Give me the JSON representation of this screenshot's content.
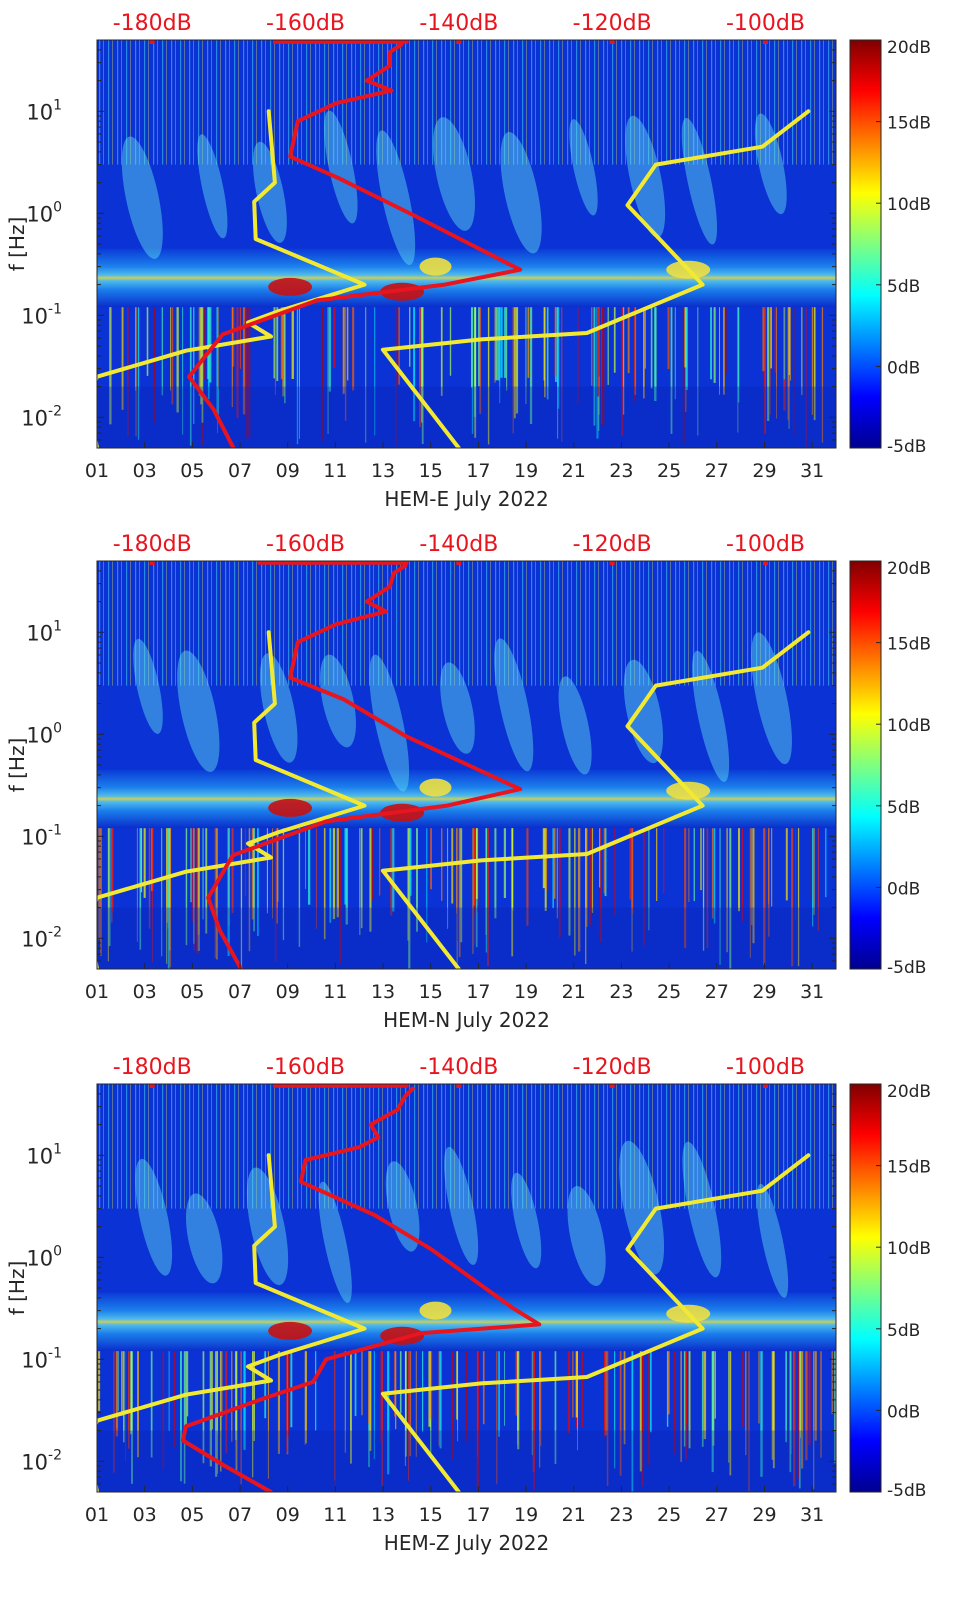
{
  "chart_data": [
    {
      "type": "heatmap",
      "xlabel": "HEM-E July 2022",
      "ylabel": "f [Hz]",
      "x_ticks": [
        "01",
        "03",
        "05",
        "07",
        "09",
        "11",
        "13",
        "15",
        "17",
        "19",
        "21",
        "23",
        "25",
        "27",
        "29",
        "31"
      ],
      "xlim": [
        1,
        32
      ],
      "y_scale": "log",
      "ylim": [
        0.005,
        50
      ],
      "y_ticks": [
        {
          "value": 10,
          "base": "10",
          "exp": "1"
        },
        {
          "value": 1,
          "base": "10",
          "exp": "0"
        },
        {
          "value": 0.1,
          "base": "10",
          "exp": "-1"
        },
        {
          "value": 0.01,
          "base": "10",
          "exp": "-2"
        }
      ],
      "top_axis": {
        "labels": [
          "-180dB",
          "-160dB",
          "-140dB",
          "-120dB",
          "-100dB"
        ],
        "values": [
          -180,
          -160,
          -140,
          -120,
          -100
        ],
        "range": [
          -187.2,
          -90.8
        ],
        "color": "#e8141e"
      },
      "colorbar": {
        "labels": [
          "20dB",
          "15dB",
          "10dB",
          "5dB",
          "0dB",
          "-5dB"
        ],
        "values": [
          20,
          15,
          10,
          5,
          0,
          -5
        ],
        "range": [
          -5,
          20
        ],
        "colormap": "jet"
      },
      "series": [
        {
          "color": "#f2ea32",
          "points": [
            [
              -187.2,
              0.005
            ],
            [
              -188.4,
              0.015
            ],
            [
              -187.2,
              0.025
            ],
            [
              -175.6,
              0.045
            ],
            [
              -164.5,
              0.062
            ],
            [
              -167.5,
              0.085
            ],
            [
              -163.5,
              0.11
            ],
            [
              -152.3,
              0.2
            ],
            [
              -166.5,
              0.56
            ],
            [
              -166.7,
              1.3
            ],
            [
              -164.0,
              2.0
            ],
            [
              -164.8,
              10
            ]
          ]
        },
        {
          "color": "#f2ea32",
          "points": [
            [
              -140.0,
              0.005
            ],
            [
              -149.9,
              0.046
            ],
            [
              -137.1,
              0.058
            ],
            [
              -123.3,
              0.067
            ],
            [
              -108.2,
              0.2
            ],
            [
              -118.0,
              1.2
            ],
            [
              -114.3,
              3.0
            ],
            [
              -100.4,
              4.5
            ],
            [
              -94.4,
              10
            ]
          ]
        },
        {
          "color": "#e8141e",
          "points": [
            [
              -169.4,
              0.005
            ],
            [
              -172.0,
              0.012
            ],
            [
              -175.2,
              0.025
            ],
            [
              -170.8,
              0.065
            ],
            [
              -158.5,
              0.14
            ],
            [
              -141.8,
              0.2
            ],
            [
              -132.0,
              0.28
            ],
            [
              -145.8,
              0.95
            ],
            [
              -155.6,
              2.2
            ],
            [
              -162.0,
              3.6
            ],
            [
              -161.0,
              8
            ],
            [
              -156.0,
              12
            ],
            [
              -148.8,
              16
            ],
            [
              -152.0,
              20
            ],
            [
              -149.0,
              28
            ],
            [
              -149.0,
              38
            ],
            [
              -147.5,
              45
            ]
          ]
        },
        {
          "color": "#e8141e",
          "points": [
            [
              -164.0,
              48
            ],
            [
              -146.8,
              48
            ]
          ]
        }
      ]
    },
    {
      "type": "heatmap",
      "xlabel": "HEM-N July 2022",
      "ylabel": "f [Hz]",
      "x_ticks": [
        "01",
        "03",
        "05",
        "07",
        "09",
        "11",
        "13",
        "15",
        "17",
        "19",
        "21",
        "23",
        "25",
        "27",
        "29",
        "31"
      ],
      "xlim": [
        1,
        32
      ],
      "y_scale": "log",
      "ylim": [
        0.005,
        50
      ],
      "y_ticks": [
        {
          "value": 10,
          "base": "10",
          "exp": "1"
        },
        {
          "value": 1,
          "base": "10",
          "exp": "0"
        },
        {
          "value": 0.1,
          "base": "10",
          "exp": "-1"
        },
        {
          "value": 0.01,
          "base": "10",
          "exp": "-2"
        }
      ],
      "top_axis": {
        "labels": [
          "-180dB",
          "-160dB",
          "-140dB",
          "-120dB",
          "-100dB"
        ],
        "values": [
          -180,
          -160,
          -140,
          -120,
          -100
        ],
        "range": [
          -187.2,
          -90.8
        ],
        "color": "#e8141e"
      },
      "colorbar": {
        "labels": [
          "20dB",
          "15dB",
          "10dB",
          "5dB",
          "0dB",
          "-5dB"
        ],
        "values": [
          20,
          15,
          10,
          5,
          0,
          -5
        ],
        "range": [
          -5,
          20
        ],
        "colormap": "jet"
      },
      "series": [
        {
          "color": "#f2ea32",
          "points": [
            [
              -187.2,
              0.005
            ],
            [
              -188.4,
              0.015
            ],
            [
              -187.2,
              0.025
            ],
            [
              -175.6,
              0.045
            ],
            [
              -164.5,
              0.062
            ],
            [
              -167.5,
              0.085
            ],
            [
              -163.5,
              0.11
            ],
            [
              -152.3,
              0.2
            ],
            [
              -166.5,
              0.56
            ],
            [
              -166.7,
              1.3
            ],
            [
              -164.0,
              2.0
            ],
            [
              -164.8,
              10
            ]
          ]
        },
        {
          "color": "#f2ea32",
          "points": [
            [
              -140.0,
              0.005
            ],
            [
              -149.9,
              0.046
            ],
            [
              -137.1,
              0.058
            ],
            [
              -123.3,
              0.067
            ],
            [
              -108.2,
              0.2
            ],
            [
              -118.0,
              1.2
            ],
            [
              -114.3,
              3.0
            ],
            [
              -100.4,
              4.5
            ],
            [
              -94.4,
              10
            ]
          ]
        },
        {
          "color": "#e8141e",
          "points": [
            [
              -168.4,
              0.005
            ],
            [
              -171.2,
              0.012
            ],
            [
              -172.7,
              0.025
            ],
            [
              -169.5,
              0.065
            ],
            [
              -157.3,
              0.14
            ],
            [
              -141.5,
              0.2
            ],
            [
              -132.0,
              0.29
            ],
            [
              -146.8,
              0.95
            ],
            [
              -155.0,
              2.2
            ],
            [
              -162.0,
              3.6
            ],
            [
              -161.0,
              8
            ],
            [
              -156.0,
              12
            ],
            [
              -149.5,
              16
            ],
            [
              -152.0,
              20
            ],
            [
              -149.0,
              28
            ],
            [
              -148.5,
              38
            ],
            [
              -147.0,
              45
            ]
          ]
        },
        {
          "color": "#e8141e",
          "points": [
            [
              -166.0,
              48
            ],
            [
              -146.8,
              48
            ]
          ]
        }
      ]
    },
    {
      "type": "heatmap",
      "xlabel": "HEM-Z July 2022",
      "ylabel": "f [Hz]",
      "x_ticks": [
        "01",
        "03",
        "05",
        "07",
        "09",
        "11",
        "13",
        "15",
        "17",
        "19",
        "21",
        "23",
        "25",
        "27",
        "29",
        "31"
      ],
      "xlim": [
        1,
        32
      ],
      "y_scale": "log",
      "ylim": [
        0.005,
        50
      ],
      "y_ticks": [
        {
          "value": 10,
          "base": "10",
          "exp": "1"
        },
        {
          "value": 1,
          "base": "10",
          "exp": "0"
        },
        {
          "value": 0.1,
          "base": "10",
          "exp": "-1"
        },
        {
          "value": 0.01,
          "base": "10",
          "exp": "-2"
        }
      ],
      "top_axis": {
        "labels": [
          "-180dB",
          "-160dB",
          "-140dB",
          "-120dB",
          "-100dB"
        ],
        "values": [
          -180,
          -160,
          -140,
          -120,
          -100
        ],
        "range": [
          -187.2,
          -90.8
        ],
        "color": "#e8141e"
      },
      "colorbar": {
        "labels": [
          "20dB",
          "15dB",
          "10dB",
          "5dB",
          "0dB",
          "-5dB"
        ],
        "values": [
          20,
          15,
          10,
          5,
          0,
          -5
        ],
        "range": [
          -5,
          20
        ],
        "colormap": "jet"
      },
      "series": [
        {
          "color": "#f2ea32",
          "points": [
            [
              -187.2,
              0.005
            ],
            [
              -188.4,
              0.015
            ],
            [
              -187.2,
              0.025
            ],
            [
              -175.6,
              0.045
            ],
            [
              -164.5,
              0.062
            ],
            [
              -167.5,
              0.085
            ],
            [
              -163.5,
              0.11
            ],
            [
              -152.3,
              0.2
            ],
            [
              -166.5,
              0.56
            ],
            [
              -166.7,
              1.3
            ],
            [
              -164.0,
              2.0
            ],
            [
              -164.8,
              10
            ]
          ]
        },
        {
          "color": "#f2ea32",
          "points": [
            [
              -140.0,
              0.005
            ],
            [
              -149.9,
              0.046
            ],
            [
              -137.1,
              0.058
            ],
            [
              -123.3,
              0.067
            ],
            [
              -108.2,
              0.2
            ],
            [
              -118.0,
              1.2
            ],
            [
              -114.3,
              3.0
            ],
            [
              -100.4,
              4.5
            ],
            [
              -94.4,
              10
            ]
          ]
        },
        {
          "color": "#e8141e",
          "points": [
            [
              -164.5,
              0.005
            ],
            [
              -170.5,
              0.009
            ],
            [
              -176.0,
              0.016
            ],
            [
              -175.6,
              0.022
            ],
            [
              -166.0,
              0.04
            ],
            [
              -159.0,
              0.06
            ],
            [
              -157.3,
              0.1
            ],
            [
              -145.0,
              0.18
            ],
            [
              -129.5,
              0.22
            ],
            [
              -133.0,
              0.32
            ],
            [
              -143.6,
              1.2
            ],
            [
              -151.0,
              2.6
            ],
            [
              -160.6,
              5.5
            ],
            [
              -160.0,
              9
            ],
            [
              -153.0,
              12
            ],
            [
              -150.5,
              15
            ],
            [
              -151.5,
              20
            ],
            [
              -148.0,
              28
            ],
            [
              -147.0,
              38
            ],
            [
              -146.0,
              45
            ]
          ]
        },
        {
          "color": "#e8141e",
          "points": [
            [
              -164.0,
              48
            ],
            [
              -146.8,
              48
            ]
          ]
        }
      ]
    }
  ]
}
